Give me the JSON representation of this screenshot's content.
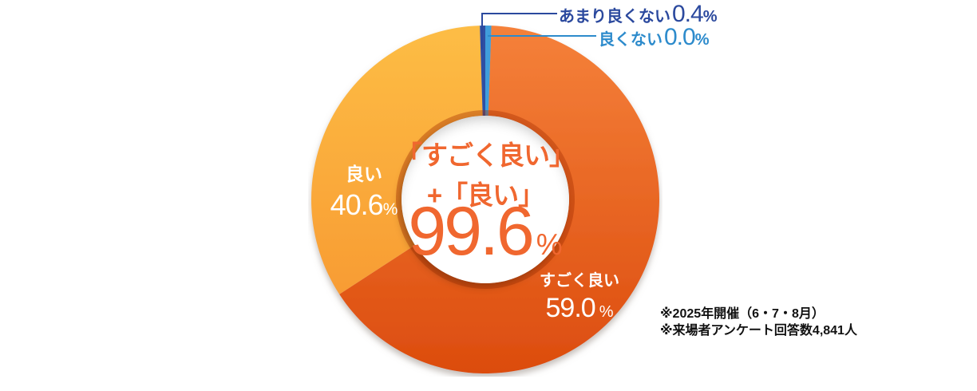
{
  "chart_data": {
    "type": "pie",
    "donut": true,
    "title": "",
    "legend_position": "callout-labels",
    "percent_sign": "%",
    "center_label": {
      "line1": "「すごく良い」",
      "line2": "+「良い」",
      "value": "99.6",
      "unit": "%"
    },
    "segments": [
      {
        "label": "すごく良い",
        "value": 59.0,
        "display": "59.0",
        "color_from": "#f5813a",
        "color_to": "#dc4c0e",
        "draw_deg": 235.0
      },
      {
        "label": "良い",
        "value": 40.6,
        "display": "40.6",
        "color_from": "#fdbd45",
        "color_to": "#f89c33",
        "draw_deg": 121.2
      },
      {
        "label": "あまり良くない",
        "value": 0.4,
        "display": "0.4",
        "color": "#2e4fa3",
        "draw_deg": 1.8
      },
      {
        "label": "良くない",
        "value": 0.0,
        "display": "0.0",
        "color": "#3f9edb",
        "draw_deg": 2.0
      }
    ],
    "rotation_deg": 2,
    "notes": [
      "※2025年開催（6・7・8月）",
      "※来場者アンケート回答数4,841人"
    ]
  },
  "colors": {
    "center_text": "#f0672f",
    "callout_not_very_good": "#2b499e",
    "callout_not_good": "#2d8bcc",
    "slice_label_text": "#ffffff",
    "notes_text": "#111111"
  }
}
